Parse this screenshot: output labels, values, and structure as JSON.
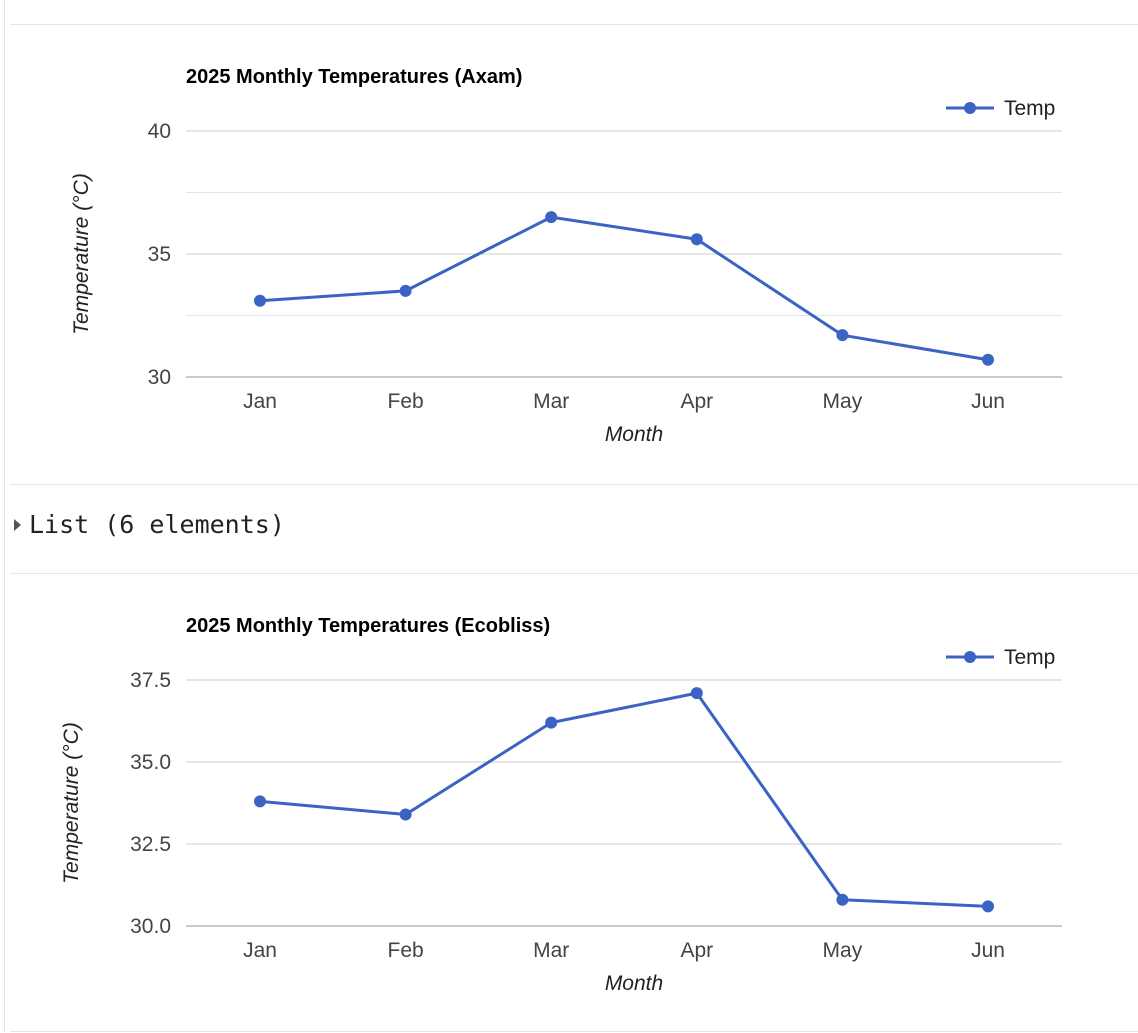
{
  "colors": {
    "series": "#3b63c4",
    "gridline": "#cccccc",
    "baseline": "#b8b8b8",
    "separator": "#e6e6e6"
  },
  "list_output": {
    "label": "List (6 elements)",
    "icon": "disclosure-triangle-right-icon"
  },
  "chart_data": [
    {
      "type": "line",
      "title": "2025 Monthly Temperatures (Axam)",
      "xlabel": "Month",
      "ylabel": "Temperature (°C)",
      "categories": [
        "Jan",
        "Feb",
        "Mar",
        "Apr",
        "May",
        "Jun"
      ],
      "series": [
        {
          "name": "Temp",
          "values": [
            33.1,
            33.5,
            36.5,
            35.6,
            31.7,
            30.7
          ]
        }
      ],
      "ylim": [
        30,
        40
      ],
      "yticks": [
        30,
        35,
        40
      ],
      "yticklabels": [
        "30",
        "35",
        "40"
      ],
      "minor_gridlines": [
        32.5,
        37.5
      ],
      "grid": true,
      "legend": "top-right"
    },
    {
      "type": "line",
      "title": "2025 Monthly Temperatures (Ecobliss)",
      "xlabel": "Month",
      "ylabel": "Temperature (°C)",
      "categories": [
        "Jan",
        "Feb",
        "Mar",
        "Apr",
        "May",
        "Jun"
      ],
      "series": [
        {
          "name": "Temp",
          "values": [
            33.8,
            33.4,
            36.2,
            37.1,
            30.8,
            30.6
          ]
        }
      ],
      "ylim": [
        30,
        37.5
      ],
      "yticks": [
        30,
        32.5,
        35,
        37.5
      ],
      "yticklabels": [
        "30.0",
        "32.5",
        "35.0",
        "37.5"
      ],
      "minor_gridlines": [],
      "grid": true,
      "legend": "top-right"
    }
  ]
}
